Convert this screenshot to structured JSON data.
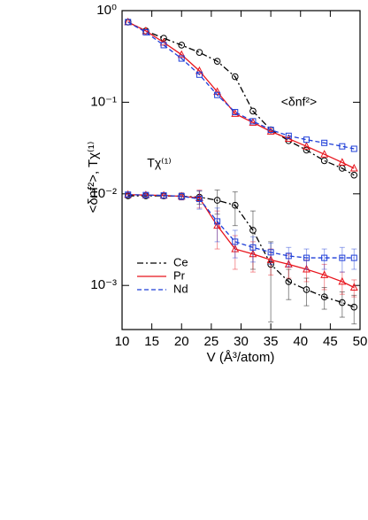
{
  "chart_data": {
    "type": "line",
    "xlabel": "V (Å³/atom)",
    "ylabel": "<δnf²>, Tχ⁽¹⁾",
    "annotations": [
      "<δnf²>",
      "Tχ⁽¹⁾"
    ],
    "log_y": true,
    "xlim": [
      10,
      50
    ],
    "xticks": [
      10,
      15,
      20,
      25,
      30,
      35,
      40,
      45,
      50
    ],
    "ylim": [
      0.00033,
      1
    ],
    "yticks": [
      {
        "value": 1,
        "label": "10⁰"
      },
      {
        "value": 0.1,
        "label": "10⁻¹"
      },
      {
        "value": 0.01,
        "label": "10⁻²"
      },
      {
        "value": 0.001,
        "label": "10⁻³"
      }
    ],
    "x": [
      11,
      14,
      17,
      20,
      23,
      26,
      29,
      32,
      35,
      38,
      41,
      44,
      47,
      49
    ],
    "series": [
      {
        "name": "Ce",
        "color": "#000000",
        "dash": "7,3,2,3",
        "marker": "circle",
        "values": [
          0.75,
          0.6,
          0.5,
          0.42,
          0.35,
          0.28,
          0.19,
          0.08,
          0.05,
          0.038,
          0.03,
          0.023,
          0.019,
          0.016
        ],
        "chi_values": [
          0.0095,
          0.0095,
          0.0095,
          0.0094,
          0.0092,
          0.0085,
          0.0075,
          0.004,
          0.0017,
          0.0011,
          0.0009,
          0.00075,
          0.00065,
          0.00058
        ],
        "chi_errors": [
          0.0005,
          0.0005,
          0.0006,
          0.0008,
          0.0015,
          0.0025,
          0.003,
          0.0025,
          0.0013,
          0.0004,
          0.0003,
          0.0002,
          0.0002,
          0.0002
        ]
      },
      {
        "name": "Pr",
        "color": "#e8141c",
        "dash": "none",
        "marker": "triangle",
        "values": [
          0.75,
          0.6,
          0.45,
          0.33,
          0.22,
          0.13,
          0.075,
          0.06,
          0.048,
          0.04,
          0.033,
          0.027,
          0.022,
          0.019
        ],
        "chi_values": [
          0.0098,
          0.0097,
          0.0096,
          0.0094,
          0.009,
          0.0045,
          0.0025,
          0.0022,
          0.0019,
          0.0017,
          0.0015,
          0.0013,
          0.0011,
          0.00095
        ],
        "chi_errors": [
          0.0005,
          0.0005,
          0.0006,
          0.0008,
          0.002,
          0.002,
          0.001,
          0.0008,
          0.0006,
          0.0005,
          0.0004,
          0.0004,
          0.0003,
          0.0002
        ]
      },
      {
        "name": "Nd",
        "color": "#1f3fd8",
        "dash": "5,3",
        "marker": "square",
        "values": [
          0.75,
          0.58,
          0.42,
          0.3,
          0.2,
          0.12,
          0.078,
          0.062,
          0.05,
          0.043,
          0.039,
          0.036,
          0.033,
          0.031
        ],
        "chi_values": [
          0.0098,
          0.0097,
          0.0096,
          0.0094,
          0.0088,
          0.005,
          0.003,
          0.0026,
          0.0023,
          0.0021,
          0.002,
          0.002,
          0.002,
          0.002
        ],
        "chi_errors": [
          0.0005,
          0.0005,
          0.0006,
          0.0008,
          0.002,
          0.002,
          0.001,
          0.0008,
          0.0006,
          0.0005,
          0.0005,
          0.0005,
          0.0006,
          0.0005
        ]
      }
    ]
  }
}
